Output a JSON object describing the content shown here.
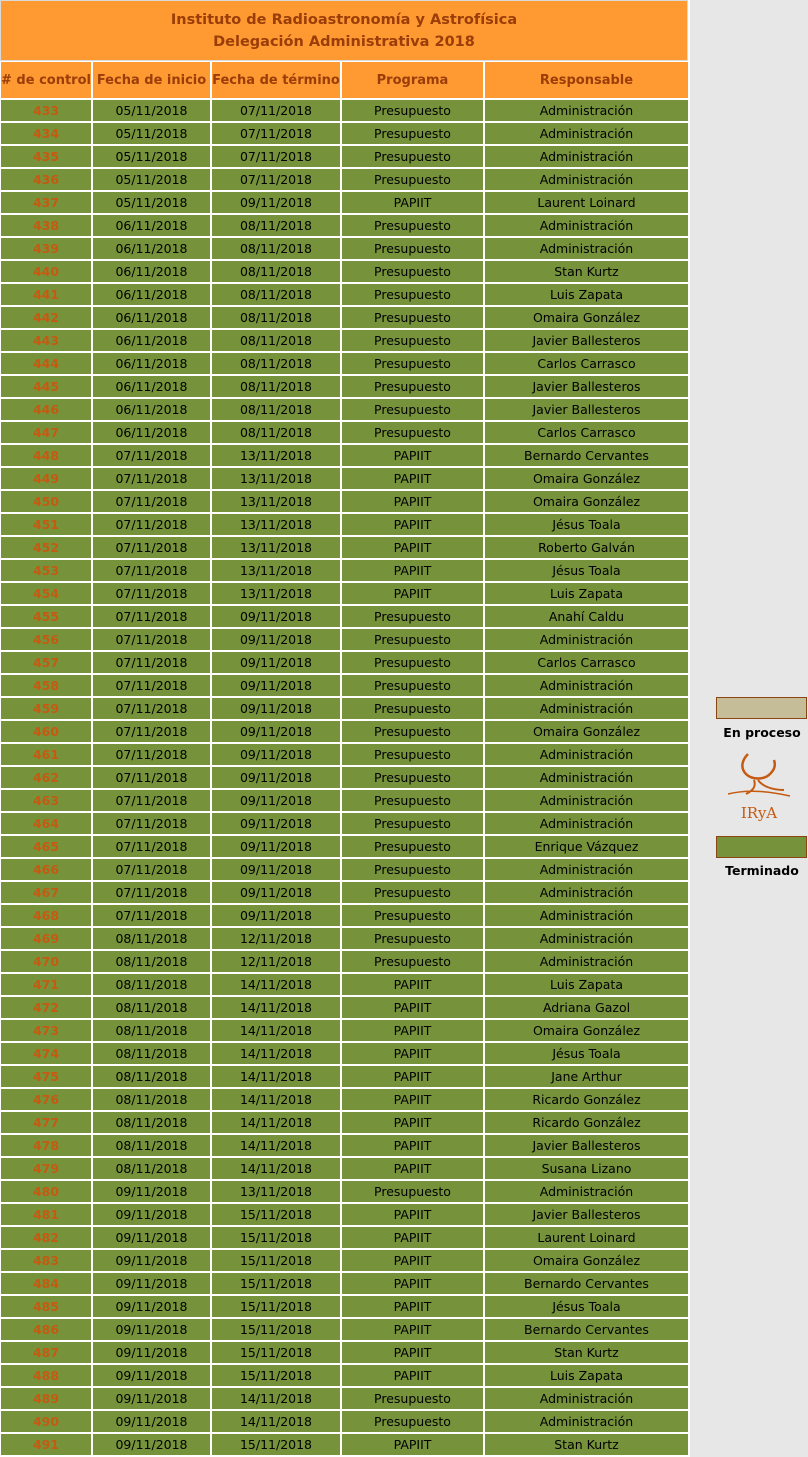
{
  "title": {
    "line1": "Instituto de Radioastronomía y Astrofísica",
    "line2": "Delegación Administrativa 2018"
  },
  "columns": [
    "# de control",
    "Fecha de inicio",
    "Fecha de término",
    "Programa",
    "Responsable"
  ],
  "rows": [
    [
      "433",
      "05/11/2018",
      "07/11/2018",
      "Presupuesto",
      "Administración"
    ],
    [
      "434",
      "05/11/2018",
      "07/11/2018",
      "Presupuesto",
      "Administración"
    ],
    [
      "435",
      "05/11/2018",
      "07/11/2018",
      "Presupuesto",
      "Administración"
    ],
    [
      "436",
      "05/11/2018",
      "07/11/2018",
      "Presupuesto",
      "Administración"
    ],
    [
      "437",
      "05/11/2018",
      "09/11/2018",
      "PAPIIT",
      "Laurent Loinard"
    ],
    [
      "438",
      "06/11/2018",
      "08/11/2018",
      "Presupuesto",
      "Administración"
    ],
    [
      "439",
      "06/11/2018",
      "08/11/2018",
      "Presupuesto",
      "Administración"
    ],
    [
      "440",
      "06/11/2018",
      "08/11/2018",
      "Presupuesto",
      "Stan Kurtz"
    ],
    [
      "441",
      "06/11/2018",
      "08/11/2018",
      "Presupuesto",
      "Luis Zapata"
    ],
    [
      "442",
      "06/11/2018",
      "08/11/2018",
      "Presupuesto",
      "Omaira González"
    ],
    [
      "443",
      "06/11/2018",
      "08/11/2018",
      "Presupuesto",
      "Javier Ballesteros"
    ],
    [
      "444",
      "06/11/2018",
      "08/11/2018",
      "Presupuesto",
      "Carlos Carrasco"
    ],
    [
      "445",
      "06/11/2018",
      "08/11/2018",
      "Presupuesto",
      "Javier Ballesteros"
    ],
    [
      "446",
      "06/11/2018",
      "08/11/2018",
      "Presupuesto",
      "Javier Ballesteros"
    ],
    [
      "447",
      "06/11/2018",
      "08/11/2018",
      "Presupuesto",
      "Carlos Carrasco"
    ],
    [
      "448",
      "07/11/2018",
      "13/11/2018",
      "PAPIIT",
      "Bernardo Cervantes"
    ],
    [
      "449",
      "07/11/2018",
      "13/11/2018",
      "PAPIIT",
      "Omaira González"
    ],
    [
      "450",
      "07/11/2018",
      "13/11/2018",
      "PAPIIT",
      "Omaira González"
    ],
    [
      "451",
      "07/11/2018",
      "13/11/2018",
      "PAPIIT",
      "Jésus Toala"
    ],
    [
      "452",
      "07/11/2018",
      "13/11/2018",
      "PAPIIT",
      "Roberto Galván"
    ],
    [
      "453",
      "07/11/2018",
      "13/11/2018",
      "PAPIIT",
      "Jésus Toala"
    ],
    [
      "454",
      "07/11/2018",
      "13/11/2018",
      "PAPIIT",
      "Luis Zapata"
    ],
    [
      "455",
      "07/11/2018",
      "09/11/2018",
      "Presupuesto",
      "Anahí Caldu"
    ],
    [
      "456",
      "07/11/2018",
      "09/11/2018",
      "Presupuesto",
      "Administración"
    ],
    [
      "457",
      "07/11/2018",
      "09/11/2018",
      "Presupuesto",
      "Carlos Carrasco"
    ],
    [
      "458",
      "07/11/2018",
      "09/11/2018",
      "Presupuesto",
      "Administración"
    ],
    [
      "459",
      "07/11/2018",
      "09/11/2018",
      "Presupuesto",
      "Administración"
    ],
    [
      "460",
      "07/11/2018",
      "09/11/2018",
      "Presupuesto",
      "Omaira González"
    ],
    [
      "461",
      "07/11/2018",
      "09/11/2018",
      "Presupuesto",
      "Administración"
    ],
    [
      "462",
      "07/11/2018",
      "09/11/2018",
      "Presupuesto",
      "Administración"
    ],
    [
      "463",
      "07/11/2018",
      "09/11/2018",
      "Presupuesto",
      "Administración"
    ],
    [
      "464",
      "07/11/2018",
      "09/11/2018",
      "Presupuesto",
      "Administración"
    ],
    [
      "465",
      "07/11/2018",
      "09/11/2018",
      "Presupuesto",
      "Enrique Vázquez"
    ],
    [
      "466",
      "07/11/2018",
      "09/11/2018",
      "Presupuesto",
      "Administración"
    ],
    [
      "467",
      "07/11/2018",
      "09/11/2018",
      "Presupuesto",
      "Administración"
    ],
    [
      "468",
      "07/11/2018",
      "09/11/2018",
      "Presupuesto",
      "Administración"
    ],
    [
      "469",
      "08/11/2018",
      "12/11/2018",
      "Presupuesto",
      "Administración"
    ],
    [
      "470",
      "08/11/2018",
      "12/11/2018",
      "Presupuesto",
      "Administración"
    ],
    [
      "471",
      "08/11/2018",
      "14/11/2018",
      "PAPIIT",
      "Luis Zapata"
    ],
    [
      "472",
      "08/11/2018",
      "14/11/2018",
      "PAPIIT",
      "Adriana Gazol"
    ],
    [
      "473",
      "08/11/2018",
      "14/11/2018",
      "PAPIIT",
      "Omaira González"
    ],
    [
      "474",
      "08/11/2018",
      "14/11/2018",
      "PAPIIT",
      "Jésus Toala"
    ],
    [
      "475",
      "08/11/2018",
      "14/11/2018",
      "PAPIIT",
      "Jane Arthur"
    ],
    [
      "476",
      "08/11/2018",
      "14/11/2018",
      "PAPIIT",
      "Ricardo González"
    ],
    [
      "477",
      "08/11/2018",
      "14/11/2018",
      "PAPIIT",
      "Ricardo González"
    ],
    [
      "478",
      "08/11/2018",
      "14/11/2018",
      "PAPIIT",
      "Javier Ballesteros"
    ],
    [
      "479",
      "08/11/2018",
      "14/11/2018",
      "PAPIIT",
      "Susana Lizano"
    ],
    [
      "480",
      "09/11/2018",
      "13/11/2018",
      "Presupuesto",
      "Administración"
    ],
    [
      "481",
      "09/11/2018",
      "15/11/2018",
      "PAPIIT",
      "Javier Ballesteros"
    ],
    [
      "482",
      "09/11/2018",
      "15/11/2018",
      "PAPIIT",
      "Laurent Loinard"
    ],
    [
      "483",
      "09/11/2018",
      "15/11/2018",
      "PAPIIT",
      "Omaira González"
    ],
    [
      "484",
      "09/11/2018",
      "15/11/2018",
      "PAPIIT",
      "Bernardo Cervantes"
    ],
    [
      "485",
      "09/11/2018",
      "15/11/2018",
      "PAPIIT",
      "Jésus Toala"
    ],
    [
      "486",
      "09/11/2018",
      "15/11/2018",
      "PAPIIT",
      "Bernardo Cervantes"
    ],
    [
      "487",
      "09/11/2018",
      "15/11/2018",
      "PAPIIT",
      "Stan Kurtz"
    ],
    [
      "488",
      "09/11/2018",
      "15/11/2018",
      "PAPIIT",
      "Luis Zapata"
    ],
    [
      "489",
      "09/11/2018",
      "14/11/2018",
      "Presupuesto",
      "Administración"
    ],
    [
      "490",
      "09/11/2018",
      "14/11/2018",
      "Presupuesto",
      "Administración"
    ],
    [
      "491",
      "09/11/2018",
      "15/11/2018",
      "PAPIIT",
      "Stan Kurtz"
    ]
  ],
  "legend": {
    "in_progress": {
      "label": "En proceso",
      "color": "#c4bd97"
    },
    "done": {
      "label": "Terminado",
      "color": "#76933c"
    }
  },
  "logo": {
    "text": "IRyA",
    "color": "#c55a11"
  },
  "colors": {
    "header_bg": "#ff9a33",
    "header_text": "#9a3d08",
    "row_bg": "#76933c",
    "control_text": "#c55a11"
  }
}
